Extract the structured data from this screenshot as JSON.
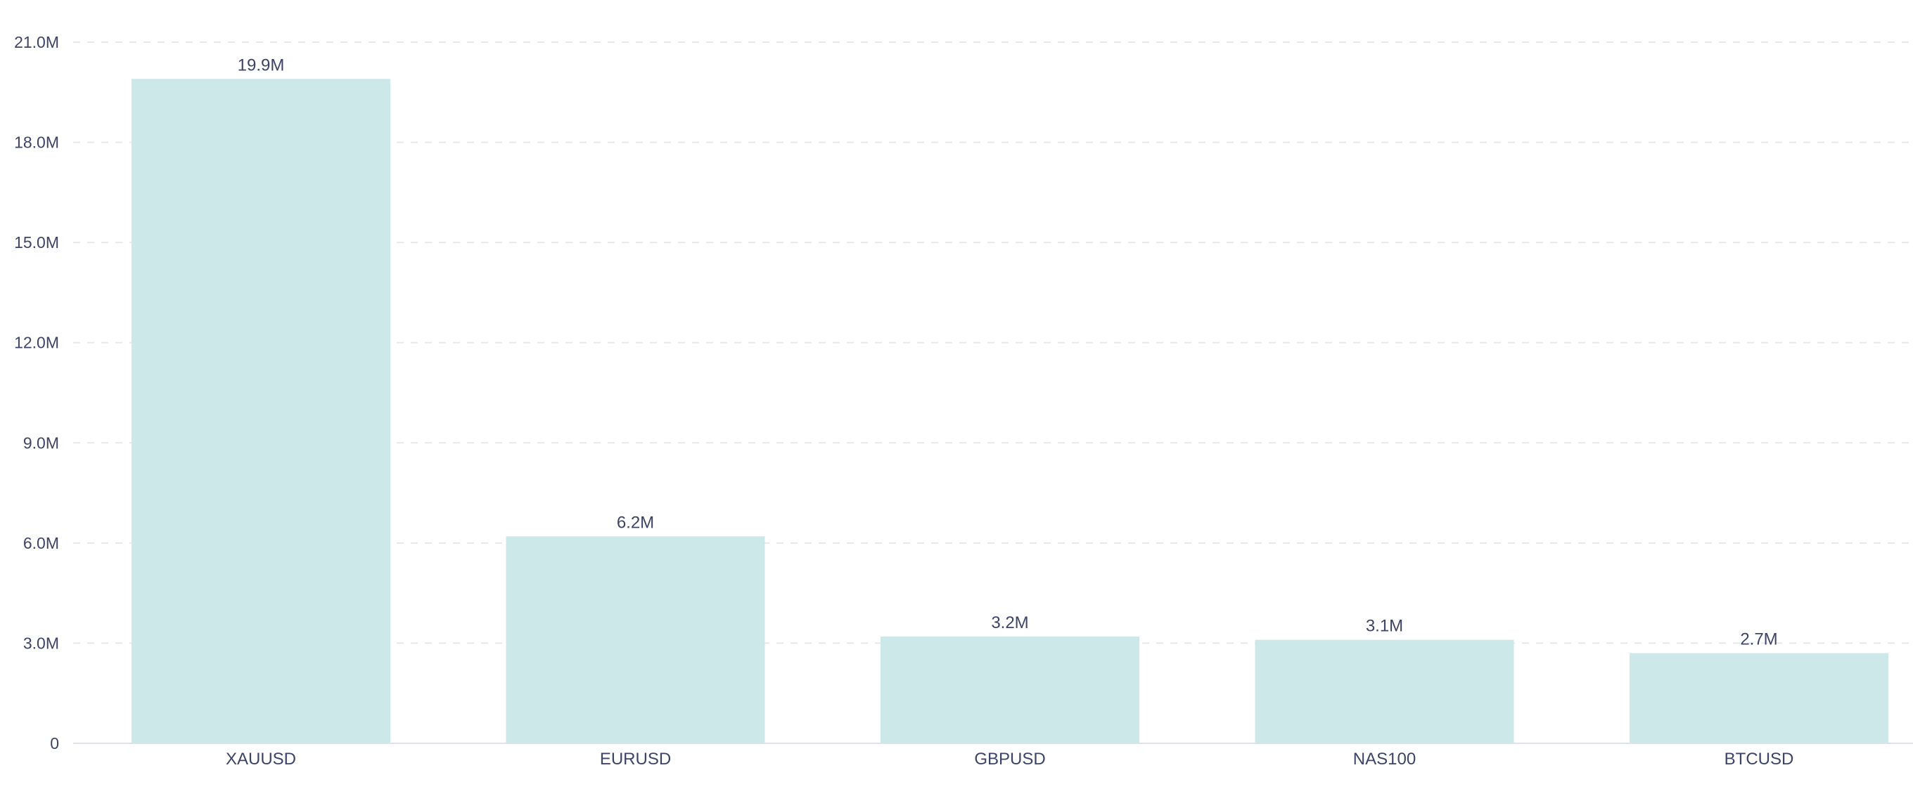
{
  "colors": {
    "bar": "#cde8e8",
    "text": "#3d4466",
    "grid": "#e6e8ee"
  },
  "chart_data": {
    "type": "bar",
    "categories": [
      "XAUUSD",
      "EURUSD",
      "GBPUSD",
      "NAS100",
      "BTCUSD"
    ],
    "values": [
      19900000,
      6200000,
      3200000,
      3100000,
      2700000
    ],
    "data_labels": [
      "19.9M",
      "6.2M",
      "3.2M",
      "3.1M",
      "2.7M"
    ],
    "title": "",
    "xlabel": "",
    "ylabel": "",
    "ylim": [
      0,
      21000000
    ],
    "yticks": [
      0,
      3000000,
      6000000,
      9000000,
      12000000,
      15000000,
      18000000,
      21000000
    ],
    "ytick_labels": [
      "0",
      "3.0M",
      "6.0M",
      "9.0M",
      "12.0M",
      "15.0M",
      "18.0M",
      "21.0M"
    ],
    "grid": true,
    "legend": "none"
  }
}
